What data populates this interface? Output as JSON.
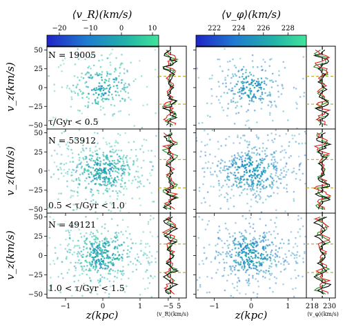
{
  "chart_data": [
    {
      "type": "scatter",
      "colorbar": {
        "label": "⟨v_R⟩(km/s)",
        "ticks": [
          "−20",
          "−10",
          "0",
          "10"
        ],
        "tick_values": [
          -20,
          -10,
          0,
          10
        ],
        "range": [
          -24,
          12
        ]
      },
      "panels": [
        {
          "annotation": "N = 19005",
          "label": "τ/Gyr < 0.5"
        },
        {
          "annotation": "N = 53912",
          "label": "0.5 < τ/Gyr < 1.0"
        },
        {
          "annotation": "N = 49121",
          "label": "1.0 < τ/Gyr < 1.5"
        }
      ],
      "xlabel": "z(kpc)",
      "ylabel": "v_z(km/s)",
      "xlim": [
        -1.5,
        1.5
      ],
      "ylim": [
        -55,
        55
      ],
      "x_ticks": [
        "−1",
        "0",
        "1"
      ],
      "x_tick_values": [
        -1,
        0,
        1
      ],
      "y_ticks": [
        "50",
        "25",
        "0",
        "−25",
        "−50"
      ],
      "y_tick_values": [
        50,
        25,
        0,
        -25,
        -50
      ],
      "side_profile": {
        "xlabel": "⟨v_R⟩(km/s)",
        "x_ticks": [
          "−5",
          "5"
        ],
        "x_tick_values": [
          -5,
          5
        ],
        "xlim": [
          -14,
          12
        ],
        "reference_line": -3,
        "dashed_levels": [
          [
            15,
            -22
          ],
          [
            15,
            -22
          ],
          [
            15,
            -22
          ]
        ]
      }
    },
    {
      "type": "scatter",
      "colorbar": {
        "label": "⟨v_φ⟩(km/s)",
        "ticks": [
          "222",
          "224",
          "226",
          "228"
        ],
        "tick_values": [
          222,
          224,
          226,
          228
        ],
        "range": [
          220.5,
          229.5
        ]
      },
      "xlabel": "z(kpc)",
      "xlim": [
        -1.5,
        1.5
      ],
      "ylim": [
        -55,
        55
      ],
      "x_ticks": [
        "−1",
        "0",
        "1"
      ],
      "x_tick_values": [
        -1,
        0,
        1
      ],
      "side_profile": {
        "xlabel": "⟨v_φ⟩(km/s)",
        "x_ticks": [
          "218",
          "230"
        ],
        "x_tick_values": [
          218,
          230
        ],
        "xlim": [
          214,
          234
        ],
        "reference_line": 225,
        "dashed_levels": [
          [
            15,
            -22
          ],
          [
            15,
            -22
          ],
          [
            15,
            -22
          ]
        ]
      }
    }
  ],
  "colors": {
    "colormap": [
      "#1f24c8",
      "#1f7bd0",
      "#22b2a8",
      "#41e49a"
    ],
    "profile_red": "#e0201c",
    "profile_green": "#1e8a1e",
    "profile_black": "#000000",
    "dashed_level": "#bfae3a"
  }
}
